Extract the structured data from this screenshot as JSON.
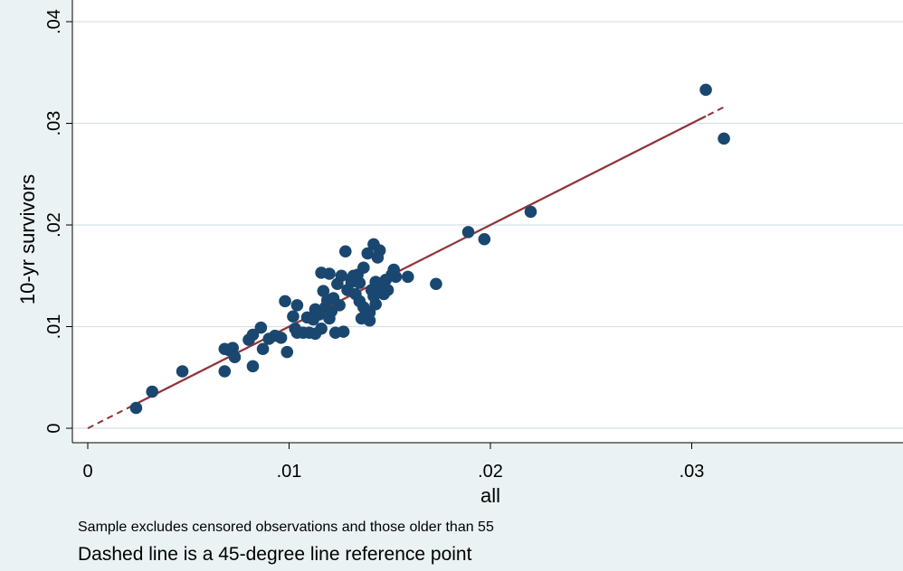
{
  "chart_data": {
    "type": "scatter",
    "xlabel": "all",
    "ylabel": "10-yr survivors",
    "xlim": [
      0,
      0.04
    ],
    "ylim": [
      0,
      0.04
    ],
    "x_ticks": [
      0,
      0.01,
      0.02,
      0.03
    ],
    "x_tick_labels": [
      "0",
      ".01",
      ".02",
      ".03"
    ],
    "y_ticks": [
      0,
      0.01,
      0.02,
      0.03,
      0.04
    ],
    "y_tick_labels": [
      "0",
      ".01",
      ".02",
      ".03",
      ".04"
    ],
    "grid": "horizontal",
    "colors": {
      "points": "#1a476f",
      "fit_line": "#90353b",
      "grid": "#d5e2e5",
      "plot_bg": "#ffffff",
      "page_bg": "#eaf2f3"
    },
    "notes": [
      "Sample excludes censored observations and those older than 55",
      "Dashed line is a 45-degree line reference point"
    ],
    "fit_line": {
      "x": [
        0.0025,
        0.0307
      ],
      "y": [
        0.0025,
        0.0307
      ]
    },
    "reference_line": {
      "x": [
        0,
        0.0317
      ],
      "y": [
        0,
        0.0317
      ],
      "style": "dashed"
    },
    "series": [
      {
        "points": [
          [
            0.0024,
            0.002
          ],
          [
            0.0032,
            0.0036
          ],
          [
            0.0047,
            0.0056
          ],
          [
            0.0068,
            0.0056
          ],
          [
            0.0068,
            0.0078
          ],
          [
            0.007,
            0.0077
          ],
          [
            0.0072,
            0.0079
          ],
          [
            0.0073,
            0.007
          ],
          [
            0.008,
            0.0087
          ],
          [
            0.0082,
            0.0092
          ],
          [
            0.0082,
            0.0061
          ],
          [
            0.0086,
            0.0099
          ],
          [
            0.0087,
            0.0078
          ],
          [
            0.009,
            0.0088
          ],
          [
            0.0093,
            0.0091
          ],
          [
            0.0096,
            0.0089
          ],
          [
            0.0098,
            0.0125
          ],
          [
            0.0099,
            0.0075
          ],
          [
            0.0102,
            0.011
          ],
          [
            0.0103,
            0.0098
          ],
          [
            0.0104,
            0.0121
          ],
          [
            0.0104,
            0.0094
          ],
          [
            0.0107,
            0.0094
          ],
          [
            0.0109,
            0.0109
          ],
          [
            0.011,
            0.0094
          ],
          [
            0.0112,
            0.0107
          ],
          [
            0.0113,
            0.0117
          ],
          [
            0.0113,
            0.0093
          ],
          [
            0.0115,
            0.0112
          ],
          [
            0.0116,
            0.0098
          ],
          [
            0.0116,
            0.0153
          ],
          [
            0.0117,
            0.0135
          ],
          [
            0.0118,
            0.0119
          ],
          [
            0.0119,
            0.0126
          ],
          [
            0.012,
            0.0152
          ],
          [
            0.012,
            0.0108
          ],
          [
            0.0121,
            0.0115
          ],
          [
            0.0122,
            0.0128
          ],
          [
            0.0123,
            0.0094
          ],
          [
            0.0124,
            0.0142
          ],
          [
            0.0125,
            0.0121
          ],
          [
            0.0126,
            0.015
          ],
          [
            0.0127,
            0.0095
          ],
          [
            0.0128,
            0.0174
          ],
          [
            0.0129,
            0.0136
          ],
          [
            0.0131,
            0.0144
          ],
          [
            0.0132,
            0.015
          ],
          [
            0.0133,
            0.0132
          ],
          [
            0.0134,
            0.0151
          ],
          [
            0.0135,
            0.0143
          ],
          [
            0.0135,
            0.0125
          ],
          [
            0.0136,
            0.0108
          ],
          [
            0.0137,
            0.0158
          ],
          [
            0.0137,
            0.0119
          ],
          [
            0.0138,
            0.0111
          ],
          [
            0.0139,
            0.0172
          ],
          [
            0.014,
            0.0106
          ],
          [
            0.014,
            0.0114
          ],
          [
            0.0141,
            0.0136
          ],
          [
            0.0142,
            0.013
          ],
          [
            0.0142,
            0.0181
          ],
          [
            0.0143,
            0.0144
          ],
          [
            0.0143,
            0.0122
          ],
          [
            0.0144,
            0.0168
          ],
          [
            0.0145,
            0.0175
          ],
          [
            0.0146,
            0.0139
          ],
          [
            0.0147,
            0.0132
          ],
          [
            0.0148,
            0.0146
          ],
          [
            0.0149,
            0.0136
          ],
          [
            0.0151,
            0.0151
          ],
          [
            0.0152,
            0.0156
          ],
          [
            0.0153,
            0.0149
          ],
          [
            0.0159,
            0.0149
          ],
          [
            0.0173,
            0.0142
          ],
          [
            0.0189,
            0.0193
          ],
          [
            0.0197,
            0.0186
          ],
          [
            0.022,
            0.0213
          ],
          [
            0.0307,
            0.0333
          ],
          [
            0.0316,
            0.0285
          ]
        ]
      }
    ]
  }
}
